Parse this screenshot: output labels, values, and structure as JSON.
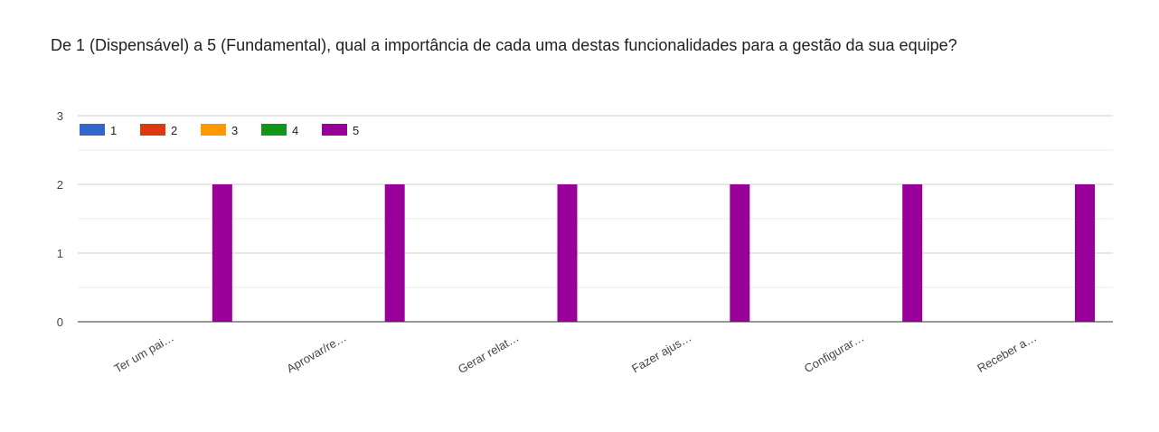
{
  "question": "De 1 (Dispensável) a 5 (Fundamental), qual a importância de cada uma destas funcionalidades para a gestão da sua equipe?",
  "chart_data": {
    "type": "bar",
    "categories": [
      "Ter um pai…",
      "Aprovar/re…",
      "Gerar relat…",
      "Fazer ajus…",
      "Configurar…",
      "Receber a…"
    ],
    "series": [
      {
        "name": "1",
        "color": "#3366cc",
        "values": [
          0,
          0,
          0,
          0,
          0,
          0
        ]
      },
      {
        "name": "2",
        "color": "#dc3912",
        "values": [
          0,
          0,
          0,
          0,
          0,
          0
        ]
      },
      {
        "name": "3",
        "color": "#ff9900",
        "values": [
          0,
          0,
          0,
          0,
          0,
          0
        ]
      },
      {
        "name": "4",
        "color": "#109618",
        "values": [
          0,
          0,
          0,
          0,
          0,
          0
        ]
      },
      {
        "name": "5",
        "color": "#990099",
        "values": [
          2,
          2,
          2,
          2,
          2,
          2
        ]
      }
    ],
    "yticks": [
      "0",
      "1",
      "2",
      "3"
    ],
    "ylim": [
      0,
      3
    ],
    "grid": true,
    "legend_position": "top-left"
  }
}
